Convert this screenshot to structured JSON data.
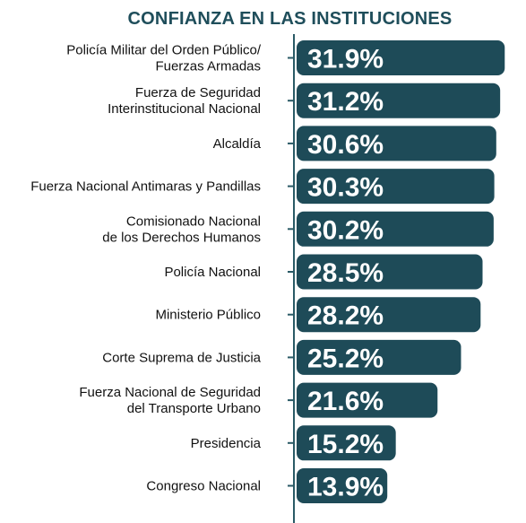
{
  "chart_data": {
    "type": "bar",
    "orientation": "horizontal",
    "title": "CONFIANZA EN LAS INSTITUCIONES",
    "categories": [
      [
        "Policía Militar del Orden Público/",
        "Fuerzas Armadas"
      ],
      [
        "Fuerza de Seguridad",
        "Interinstitucional Nacional"
      ],
      [
        "Alcaldía"
      ],
      [
        "Fuerza Nacional Antimaras y Pandillas"
      ],
      [
        "Comisionado Nacional",
        "de los Derechos Humanos"
      ],
      [
        "Policía Nacional"
      ],
      [
        "Ministerio Público"
      ],
      [
        "Corte Suprema de Justicia"
      ],
      [
        "Fuerza Nacional de Seguridad",
        "del Transporte Urbano"
      ],
      [
        "Presidencia"
      ],
      [
        "Congreso Nacional"
      ]
    ],
    "values": [
      31.9,
      31.2,
      30.6,
      30.3,
      30.2,
      28.5,
      28.2,
      25.2,
      21.6,
      15.2,
      13.9
    ],
    "value_labels": [
      "31.9%",
      "31.2%",
      "30.6%",
      "30.3%",
      "30.2%",
      "28.5%",
      "28.2%",
      "25.2%",
      "21.6%",
      "15.2%",
      "13.9%"
    ],
    "xlim": [
      0,
      32
    ],
    "bar_color": "#1e4b58",
    "axis_color": "#2a5a66",
    "grid": false,
    "legend": "none"
  }
}
